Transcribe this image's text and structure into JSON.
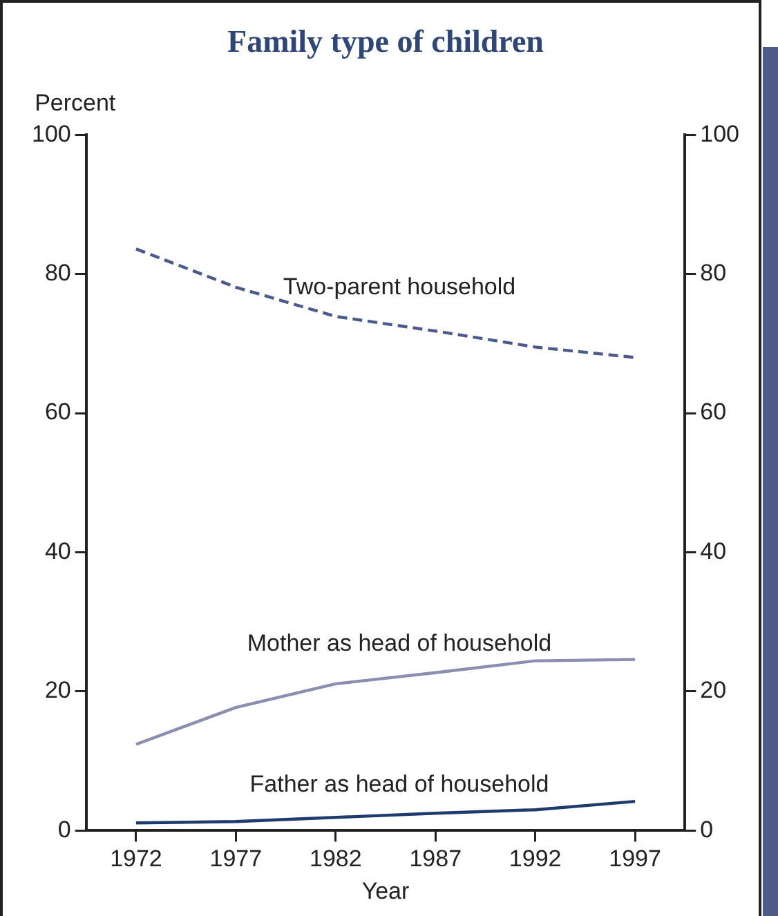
{
  "chart_data": {
    "type": "line",
    "title": "Family type of children",
    "xlabel": "Year",
    "ylabel": "Percent",
    "categories": [
      "1972",
      "1977",
      "1982",
      "1987",
      "1992",
      "1997"
    ],
    "series": [
      {
        "name": "Two-parent household",
        "color": "#4a5a8c",
        "line_style": "dashed",
        "values": [
          83.6,
          78.1,
          73.9,
          71.8,
          69.5,
          68
        ]
      },
      {
        "name": "Mother as head of household",
        "color": "#8a8fb2",
        "line_style": "solid",
        "values": [
          12.4,
          17.7,
          21.1,
          22.7,
          24.4,
          24.6
        ]
      },
      {
        "name": "Father as head of household",
        "color": "#1f3a6e",
        "line_style": "solid",
        "values": [
          1.1,
          1.3,
          1.9,
          2.5,
          3.0,
          4.2
        ]
      }
    ],
    "ylim": [
      0,
      100
    ],
    "yticks": [
      0,
      20,
      40,
      60,
      80,
      100
    ],
    "y2lim": [
      0,
      100
    ],
    "y2ticks": [
      0,
      20,
      40,
      60,
      80,
      100
    ],
    "grid": false,
    "legend": false,
    "marker": "none"
  }
}
